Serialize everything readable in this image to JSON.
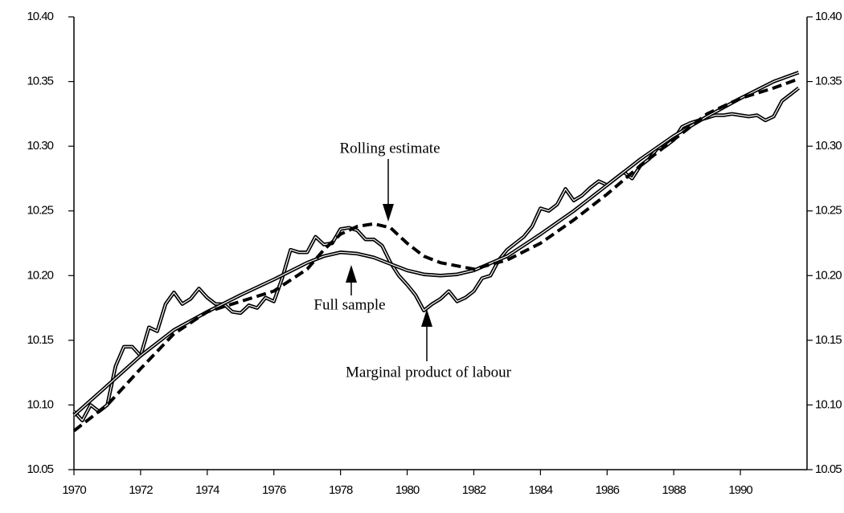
{
  "chart_data": {
    "type": "line",
    "xlim": [
      1970,
      1992
    ],
    "xticks": [
      1970,
      1972,
      1974,
      1976,
      1978,
      1980,
      1982,
      1984,
      1986,
      1988,
      1990
    ],
    "ylim": [
      10.05,
      10.4
    ],
    "yticks": [
      10.05,
      {
        "value": 10.1,
        "label": "10.10"
      },
      10.15,
      {
        "value": 10.2,
        "label": "10.20"
      },
      10.25,
      {
        "value": 10.3,
        "label": "10.30"
      },
      10.35,
      {
        "value": 10.4,
        "label": "10.40"
      }
    ],
    "series": [
      {
        "name": "Marginal product of labour",
        "color": "#000000",
        "style": "double",
        "x": [
          1970,
          1970.25,
          1970.5,
          1970.75,
          1971,
          1971.25,
          1971.5,
          1971.75,
          1972,
          1972.25,
          1972.5,
          1972.75,
          1973,
          1973.25,
          1973.5,
          1973.75,
          1974,
          1974.25,
          1974.5,
          1974.75,
          1975,
          1975.25,
          1975.5,
          1975.75,
          1976,
          1976.25,
          1976.5,
          1976.75,
          1977,
          1977.25,
          1977.5,
          1977.75,
          1978,
          1978.25,
          1978.5,
          1978.75,
          1979,
          1979.25,
          1979.5,
          1979.75,
          1980,
          1980.25,
          1980.5,
          1980.75,
          1981,
          1981.25,
          1981.5,
          1981.75,
          1982,
          1982.25,
          1982.5,
          1982.75,
          1983,
          1983.25,
          1983.5,
          1983.75,
          1984,
          1984.25,
          1984.5,
          1984.75,
          1985,
          1985.25,
          1985.5,
          1985.75,
          1986,
          1986.25,
          1986.5,
          1986.75,
          1987,
          1987.25,
          1987.5,
          1987.75,
          1988,
          1988.25,
          1988.5,
          1988.75,
          1989,
          1989.25,
          1989.5,
          1989.75,
          1990,
          1990.25,
          1990.5,
          1990.75,
          1991,
          1991.25,
          1991.5,
          1991.75
        ],
        "values": [
          10.095,
          10.088,
          10.1,
          10.095,
          10.1,
          10.13,
          10.145,
          10.145,
          10.138,
          10.16,
          10.157,
          10.178,
          10.187,
          10.178,
          10.182,
          10.19,
          10.183,
          10.178,
          10.178,
          10.172,
          10.171,
          10.177,
          10.175,
          10.183,
          10.18,
          10.198,
          10.22,
          10.218,
          10.218,
          10.23,
          10.224,
          10.225,
          10.236,
          10.237,
          10.235,
          10.228,
          10.228,
          10.223,
          10.21,
          10.2,
          10.193,
          10.185,
          10.173,
          10.178,
          10.182,
          10.188,
          10.18,
          10.183,
          10.188,
          10.198,
          10.2,
          10.212,
          10.22,
          10.225,
          10.23,
          10.238,
          10.252,
          10.25,
          10.255,
          10.267,
          10.258,
          10.262,
          10.268,
          10.273,
          10.27,
          10.275,
          10.28,
          10.275,
          10.285,
          10.29,
          10.298,
          10.3,
          10.305,
          10.315,
          10.318,
          10.32,
          10.322,
          10.324,
          10.324,
          10.325,
          10.324,
          10.323,
          10.324,
          10.32,
          10.323,
          10.335,
          10.34,
          10.345
        ]
      },
      {
        "name": "Full sample",
        "color": "#000000",
        "style": "double",
        "x": [
          1970,
          1971,
          1972,
          1973,
          1974,
          1975,
          1976,
          1977,
          1977.5,
          1978,
          1978.5,
          1979,
          1979.5,
          1980,
          1980.5,
          1981,
          1981.5,
          1982,
          1983,
          1984,
          1985,
          1986,
          1987,
          1988,
          1989,
          1990,
          1991,
          1991.75
        ],
        "values": [
          10.092,
          10.115,
          10.138,
          10.158,
          10.172,
          10.185,
          10.197,
          10.21,
          10.215,
          10.218,
          10.217,
          10.214,
          10.209,
          10.204,
          10.201,
          10.2,
          10.201,
          10.204,
          10.215,
          10.232,
          10.25,
          10.27,
          10.29,
          10.308,
          10.323,
          10.337,
          10.35,
          10.357
        ]
      },
      {
        "name": "Rolling estimate",
        "color": "#000000",
        "style": "dashed",
        "x": [
          1970,
          1971,
          1972,
          1973,
          1974,
          1975,
          1976,
          1977,
          1977.5,
          1978,
          1978.5,
          1979,
          1979.5,
          1980,
          1980.5,
          1981,
          1982,
          1983,
          1984,
          1985,
          1986,
          1987,
          1988,
          1989,
          1990,
          1991,
          1991.75
        ],
        "values": [
          10.08,
          10.1,
          10.128,
          10.155,
          10.172,
          10.18,
          10.188,
          10.205,
          10.22,
          10.232,
          10.238,
          10.24,
          10.237,
          10.225,
          10.215,
          10.21,
          10.205,
          10.212,
          10.225,
          10.243,
          10.263,
          10.285,
          10.305,
          10.325,
          10.337,
          10.345,
          10.352
        ]
      }
    ]
  }
}
